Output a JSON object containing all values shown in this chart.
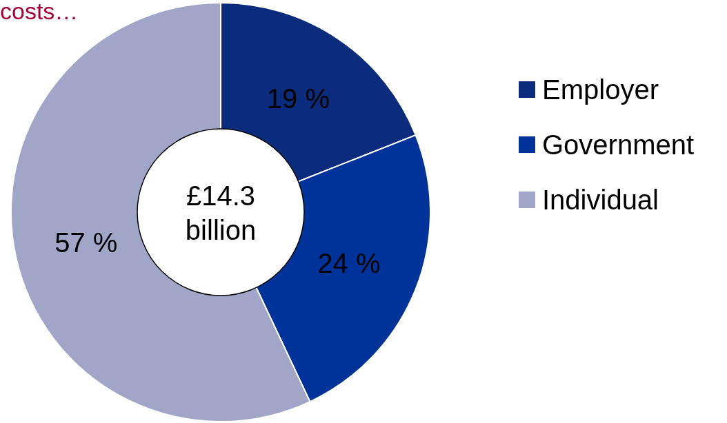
{
  "chart_data": {
    "type": "donut",
    "title": "costs…",
    "categories": [
      "Employer",
      "Government",
      "Individual"
    ],
    "values": [
      19,
      24,
      57
    ],
    "colors": [
      "#0b2c7c",
      "#003399",
      "#a1a5c8"
    ],
    "value_labels": [
      "19 %",
      "24 %",
      "57 %"
    ],
    "annotations": [
      "£14.3 billion"
    ],
    "legend": "right"
  }
}
